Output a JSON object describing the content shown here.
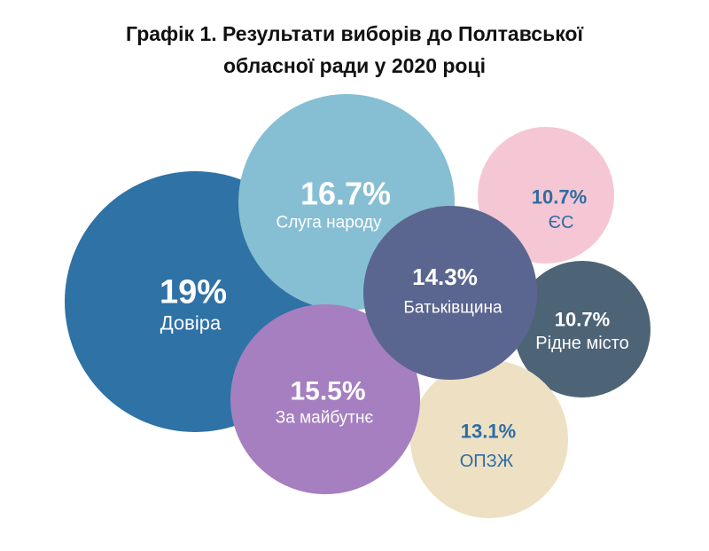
{
  "chart_data": {
    "type": "bubble",
    "title_line1": "Графік 1. Результати виборів до Полтавської",
    "title_line2": "обласної ради у 2020 році",
    "series": [
      {
        "name": "Довіра",
        "value": 19,
        "value_label": "19%",
        "color": "#2e72a6",
        "text_color": "#ffffff"
      },
      {
        "name": "Слуга народу",
        "value": 16.7,
        "value_label": "16.7%",
        "color": "#86bfd4",
        "text_color": "#ffffff"
      },
      {
        "name": "ЄС",
        "value": 10.7,
        "value_label": "10.7%",
        "color": "#f5c6d4",
        "text_color": "#2e6da4"
      },
      {
        "name": "Рідне місто",
        "value": 10.7,
        "value_label": "10.7%",
        "color": "#4d6376",
        "text_color": "#ffffff"
      },
      {
        "name": "ОПЗЖ",
        "value": 13.1,
        "value_label": "13.1%",
        "color": "#ede0c3",
        "text_color": "#2e6da4"
      },
      {
        "name": "За майбутнє",
        "value": 15.5,
        "value_label": "15.5%",
        "color": "#a57fbf",
        "text_color": "#ffffff"
      },
      {
        "name": "Батьківщина",
        "value": 14.3,
        "value_label": "14.3%",
        "color": "#5a6690",
        "text_color": "#ffffff"
      }
    ]
  }
}
